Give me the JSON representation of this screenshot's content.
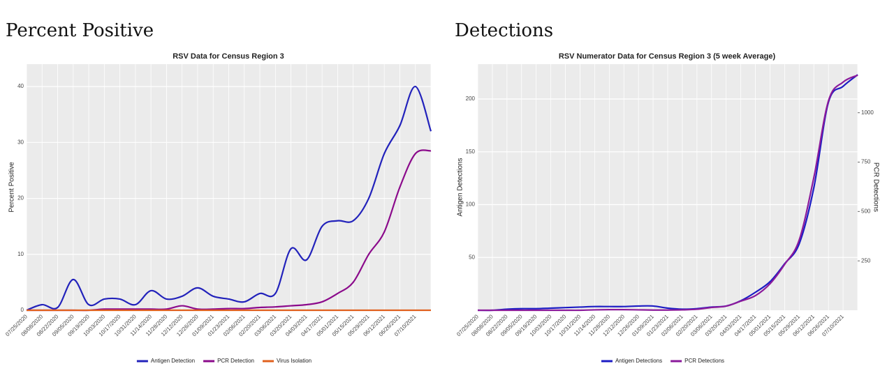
{
  "headings": [
    "Percent Positive",
    "Detections"
  ],
  "chart_data": [
    {
      "type": "line",
      "title": "RSV Data for Census Region 3",
      "ylabel": "Percent Positive",
      "categories": [
        "07/25/2020",
        "08/08/2020",
        "08/22/2020",
        "09/05/2020",
        "09/19/2020",
        "10/03/2020",
        "10/17/2020",
        "10/31/2020",
        "11/14/2020",
        "11/28/2020",
        "12/12/2020",
        "12/26/2020",
        "01/09/2021",
        "01/23/2021",
        "02/06/2021",
        "02/20/2021",
        "03/06/2021",
        "03/20/2021",
        "04/03/2021",
        "04/17/2021",
        "05/01/2021",
        "05/15/2021",
        "05/29/2021",
        "06/12/2021",
        "06/26/2021",
        "07/10/2021",
        null
      ],
      "series": [
        {
          "name": "Antigen Detection",
          "color": "#2222bb",
          "values": [
            0,
            1,
            0.5,
            5.5,
            1,
            2,
            2,
            1,
            3.5,
            2,
            2.5,
            4,
            2.5,
            2,
            1.5,
            3,
            3,
            11,
            9,
            15,
            16,
            16,
            20,
            28,
            33,
            40,
            32
          ]
        },
        {
          "name": "PCR Detection",
          "color": "#8b0a8b",
          "values": [
            0,
            0,
            0,
            0,
            0,
            0.2,
            0.2,
            0.2,
            0.2,
            0.2,
            0.8,
            0.2,
            0.2,
            0.3,
            0.3,
            0.5,
            0.6,
            0.8,
            1,
            1.5,
            3,
            5,
            10,
            14,
            22,
            28,
            28.5
          ]
        },
        {
          "name": "Virus Isolation",
          "color": "#e0601e",
          "values": [
            0,
            0,
            0,
            0,
            0,
            0,
            0,
            0,
            0,
            0,
            0,
            0,
            0,
            0,
            0,
            0,
            0,
            0,
            0,
            0,
            0,
            0,
            0,
            0,
            0,
            0,
            0
          ]
        }
      ],
      "ylim": [
        0,
        44
      ],
      "yticks": [
        0,
        10,
        20,
        30,
        40
      ],
      "grid": true,
      "legend": "bottom"
    },
    {
      "type": "line",
      "title": "RSV Numerator Data for Census Region 3 (5 week Average)",
      "ylabel": "Antigen Detections",
      "y2label": "PCR Detections",
      "categories": [
        "07/25/2020",
        "08/08/2020",
        "08/22/2020",
        "09/05/2020",
        "09/19/2020",
        "10/03/2020",
        "10/17/2020",
        "10/31/2020",
        "11/14/2020",
        "11/28/2020",
        "12/12/2020",
        "12/26/2020",
        "01/09/2021",
        "01/23/2021",
        "02/06/2021",
        "02/20/2021",
        "03/06/2021",
        "03/20/2021",
        "04/03/2021",
        "04/17/2021",
        "05/01/2021",
        "05/15/2021",
        "05/29/2021",
        "06/12/2021",
        "06/26/2021",
        "07/10/2021",
        null
      ],
      "series": [
        {
          "name": "Antigen Detections",
          "color": "#1c1cc4",
          "values": [
            0,
            0,
            1,
            1.5,
            1.5,
            2,
            2.5,
            3,
            3.5,
            3.5,
            3.5,
            4,
            4,
            2,
            1,
            1.5,
            3,
            4,
            9,
            17,
            27,
            44,
            63,
            116,
            197,
            212,
            223
          ]
        },
        {
          "name": "PCR Detections",
          "color": "#8b1a9b",
          "axis": "y2",
          "values": [
            0,
            0,
            0,
            0,
            0,
            0,
            0,
            0,
            2,
            3,
            3,
            2,
            1,
            1,
            2,
            5,
            14,
            21,
            46,
            74,
            134,
            232,
            356,
            672,
            1060,
            1155,
            1190
          ]
        }
      ],
      "ylim": [
        0,
        233
      ],
      "yticks": [
        50,
        100,
        150,
        200
      ],
      "y2lim": [
        0,
        1246
      ],
      "y2ticks": [
        250,
        500,
        750,
        1000
      ],
      "grid": true,
      "legend": "bottom"
    }
  ]
}
